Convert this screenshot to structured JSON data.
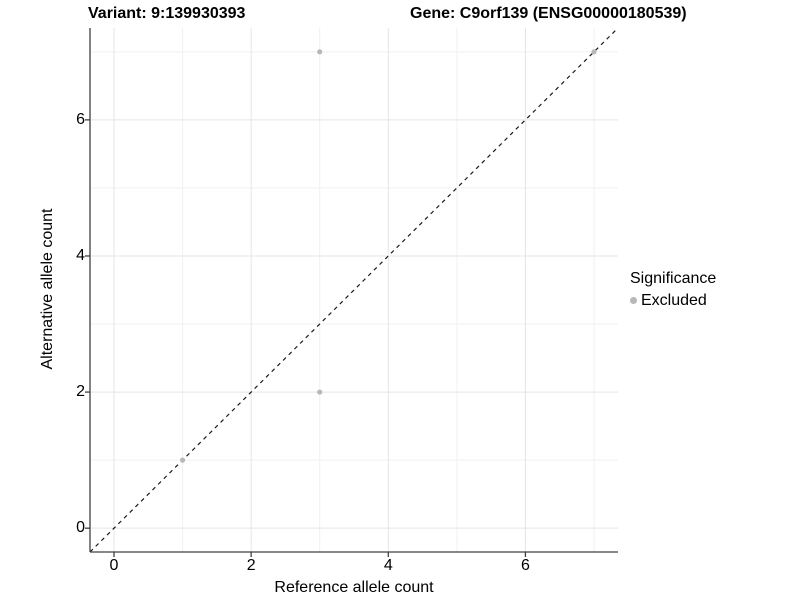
{
  "header": {
    "title_left": "Variant: 9:139930393",
    "title_right": "Gene: C9orf139 (ENSG00000180539)"
  },
  "chart_data": {
    "type": "scatter",
    "title_left": "Variant: 9:139930393",
    "title_right": "Gene: C9orf139 (ENSG00000180539)",
    "xlabel": "Reference allele count",
    "ylabel": "Alternative allele count",
    "xlim": [
      -0.35,
      7.35
    ],
    "ylim": [
      -0.35,
      7.35
    ],
    "x_ticks": [
      0,
      2,
      4,
      6
    ],
    "y_ticks": [
      0,
      2,
      4,
      6
    ],
    "minor_grid": [
      1,
      3,
      5,
      7
    ],
    "grid": true,
    "legend_position": "right",
    "series": [
      {
        "name": "Excluded",
        "color": "#b8b8b8",
        "points": [
          [
            1,
            1
          ],
          [
            3,
            2
          ],
          [
            3,
            7
          ],
          [
            7,
            7
          ]
        ]
      }
    ],
    "reference_line": {
      "type": "identity",
      "equation": "y = x",
      "style": "dashed",
      "color": "#1a1a1a"
    },
    "legend": {
      "title": "Significance",
      "items": [
        {
          "label": "Excluded",
          "color": "#b8b8b8"
        }
      ]
    },
    "colors": {
      "background": "#ffffff",
      "grid_major": "#e5e5e5",
      "grid_minor": "#f0f0f0",
      "axis_line": "#404040",
      "point": "#b8b8b8",
      "text": "#000000"
    }
  }
}
